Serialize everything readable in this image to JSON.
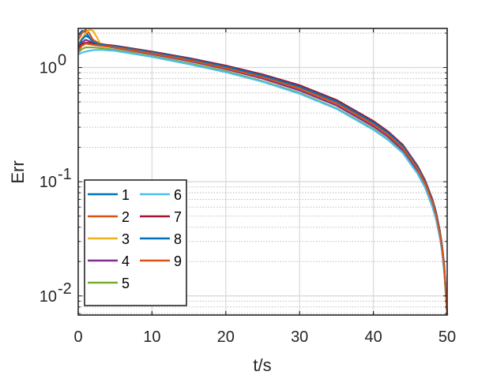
{
  "chart_data": {
    "type": "line",
    "xlabel": "t/s",
    "ylabel": "Err",
    "xlim": [
      0,
      50
    ],
    "ylim": [
      0.0068,
      2.2
    ],
    "yscale": "log",
    "grid": true,
    "legend_position": "bottom-left",
    "x_ticks": [
      "0",
      "10",
      "20",
      "30",
      "40",
      "50"
    ],
    "y_ticks": [
      {
        "base": "10",
        "exp": "-2",
        "value": 0.01
      },
      {
        "base": "10",
        "exp": "-1",
        "value": 0.1
      },
      {
        "base": "10",
        "exp": "0",
        "value": 1
      }
    ],
    "series": [
      {
        "name": "1",
        "color": "#0072BD",
        "x": [
          0,
          0.5,
          1.0,
          1.5,
          2.0,
          3,
          5,
          10,
          15,
          20,
          25,
          30,
          35,
          40,
          42,
          44,
          46,
          47,
          48,
          48.5,
          49,
          49.3,
          49.6,
          49.8,
          50
        ],
        "y": [
          1.9,
          2.1,
          2.05,
          1.85,
          1.65,
          1.57,
          1.5,
          1.32,
          1.15,
          0.98,
          0.81,
          0.64,
          0.47,
          0.31,
          0.25,
          0.19,
          0.125,
          0.095,
          0.065,
          0.05,
          0.035,
          0.026,
          0.017,
          0.011,
          0.0068
        ]
      },
      {
        "name": "2",
        "color": "#D95319",
        "x": [
          0,
          0.5,
          1.0,
          1.5,
          2.0,
          3,
          5,
          10,
          15,
          20,
          25,
          30,
          35,
          40,
          42,
          44,
          46,
          47,
          48,
          48.5,
          49,
          49.3,
          49.6,
          49.8,
          50
        ],
        "y": [
          1.75,
          2.0,
          2.15,
          2.0,
          1.75,
          1.6,
          1.52,
          1.34,
          1.17,
          1.0,
          0.83,
          0.66,
          0.49,
          0.32,
          0.26,
          0.2,
          0.13,
          0.098,
          0.067,
          0.052,
          0.036,
          0.027,
          0.018,
          0.011,
          0.0068
        ]
      },
      {
        "name": "3",
        "color": "#EDB120",
        "x": [
          0,
          0.5,
          1.0,
          1.5,
          2.0,
          2.5,
          3,
          5,
          10,
          15,
          20,
          25,
          30,
          35,
          40,
          42,
          44,
          46,
          47,
          48,
          48.5,
          49,
          49.3,
          49.6,
          49.8,
          50
        ],
        "y": [
          1.6,
          1.8,
          2.0,
          2.15,
          2.1,
          1.85,
          1.62,
          1.51,
          1.33,
          1.16,
          0.99,
          0.82,
          0.65,
          0.48,
          0.315,
          0.255,
          0.195,
          0.128,
          0.096,
          0.066,
          0.051,
          0.0355,
          0.0265,
          0.0175,
          0.011,
          0.0068
        ]
      },
      {
        "name": "4",
        "color": "#7E2F8E",
        "x": [
          0,
          0.5,
          1.0,
          1.5,
          2.0,
          3,
          5,
          10,
          15,
          20,
          25,
          30,
          35,
          40,
          42,
          44,
          46,
          47,
          48,
          48.5,
          49,
          49.3,
          49.6,
          49.8,
          50
        ],
        "y": [
          1.45,
          1.65,
          1.75,
          1.7,
          1.62,
          1.56,
          1.49,
          1.31,
          1.14,
          0.97,
          0.8,
          0.63,
          0.465,
          0.305,
          0.247,
          0.188,
          0.124,
          0.094,
          0.064,
          0.0495,
          0.0345,
          0.026,
          0.017,
          0.011,
          0.0068
        ]
      },
      {
        "name": "5",
        "color": "#77AC30",
        "x": [
          0,
          0.5,
          1.0,
          1.5,
          2.0,
          3,
          5,
          10,
          15,
          20,
          25,
          30,
          35,
          40,
          42,
          44,
          46,
          47,
          48,
          48.5,
          49,
          49.3,
          49.6,
          49.8,
          50
        ],
        "y": [
          1.35,
          1.45,
          1.5,
          1.5,
          1.5,
          1.48,
          1.43,
          1.26,
          1.09,
          0.93,
          0.76,
          0.6,
          0.44,
          0.29,
          0.235,
          0.18,
          0.118,
          0.09,
          0.061,
          0.047,
          0.033,
          0.025,
          0.0165,
          0.0108,
          0.0068
        ]
      },
      {
        "name": "6",
        "color": "#4DBEEE",
        "x": [
          0,
          0.5,
          1.0,
          1.5,
          2.0,
          3,
          5,
          10,
          15,
          20,
          25,
          30,
          35,
          40,
          42,
          44,
          46,
          47,
          48,
          48.5,
          49,
          49.3,
          49.6,
          49.8,
          50
        ],
        "y": [
          1.3,
          1.35,
          1.38,
          1.4,
          1.42,
          1.43,
          1.4,
          1.24,
          1.07,
          0.91,
          0.75,
          0.59,
          0.435,
          0.285,
          0.232,
          0.178,
          0.117,
          0.089,
          0.06,
          0.0465,
          0.0325,
          0.0245,
          0.0163,
          0.0107,
          0.0068
        ]
      },
      {
        "name": "7",
        "color": "#A2142F",
        "x": [
          0,
          0.5,
          1.0,
          1.5,
          2.0,
          3,
          5,
          10,
          15,
          20,
          25,
          30,
          35,
          40,
          42,
          44,
          46,
          47,
          48,
          48.5,
          49,
          49.3,
          49.6,
          49.8,
          50
        ],
        "y": [
          1.5,
          1.6,
          1.65,
          1.64,
          1.62,
          1.6,
          1.55,
          1.38,
          1.21,
          1.04,
          0.87,
          0.7,
          0.52,
          0.34,
          0.275,
          0.21,
          0.137,
          0.103,
          0.07,
          0.054,
          0.0375,
          0.028,
          0.0185,
          0.0115,
          0.0068
        ]
      },
      {
        "name": "8",
        "color": "#0072BD",
        "x": [
          0,
          0.5,
          1.0,
          1.5,
          2.0,
          3,
          5,
          10,
          15,
          20,
          25,
          30,
          35,
          40,
          42,
          44,
          46,
          47,
          48,
          48.5,
          49,
          49.3,
          49.6,
          49.8,
          50
        ],
        "y": [
          1.55,
          1.75,
          1.9,
          1.82,
          1.68,
          1.58,
          1.53,
          1.36,
          1.19,
          1.02,
          0.85,
          0.68,
          0.505,
          0.33,
          0.268,
          0.205,
          0.134,
          0.1,
          0.068,
          0.053,
          0.0368,
          0.0275,
          0.018,
          0.0113,
          0.0068
        ]
      },
      {
        "name": "9",
        "color": "#D95319",
        "x": [
          0,
          0.5,
          1.0,
          1.5,
          2.0,
          3,
          5,
          10,
          15,
          20,
          25,
          30,
          35,
          40,
          42,
          44,
          46,
          47,
          48,
          48.5,
          49,
          49.3,
          49.6,
          49.8,
          50
        ],
        "y": [
          1.4,
          1.55,
          1.62,
          1.6,
          1.58,
          1.55,
          1.5,
          1.33,
          1.16,
          0.99,
          0.82,
          0.655,
          0.485,
          0.318,
          0.258,
          0.197,
          0.129,
          0.097,
          0.066,
          0.051,
          0.0355,
          0.0265,
          0.0176,
          0.0111,
          0.0068
        ]
      }
    ]
  }
}
